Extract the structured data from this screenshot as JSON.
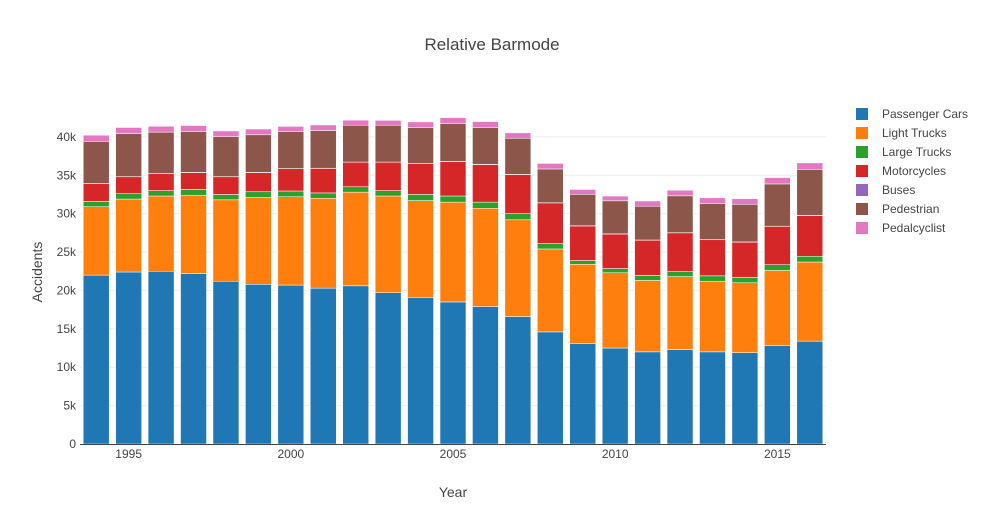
{
  "chart_data": {
    "type": "bar",
    "barmode": "relative",
    "title": "Relative Barmode",
    "xlabel": "Year",
    "ylabel": "Accidents",
    "x": [
      1994,
      1995,
      1996,
      1997,
      1998,
      1999,
      2000,
      2001,
      2002,
      2003,
      2004,
      2005,
      2006,
      2007,
      2008,
      2009,
      2010,
      2011,
      2012,
      2013,
      2014,
      2015,
      2016
    ],
    "xlim": [
      1993.5,
      2016.5
    ],
    "ylim": [
      0,
      43500
    ],
    "x_ticks": [
      1995,
      2000,
      2005,
      2010,
      2015
    ],
    "y_ticks": [
      0,
      5000,
      10000,
      15000,
      20000,
      25000,
      30000,
      35000,
      40000
    ],
    "y_tick_labels": [
      "0",
      "5k",
      "10k",
      "15k",
      "20k",
      "25k",
      "30k",
      "35k",
      "40k"
    ],
    "grid": true,
    "legend_position": "right",
    "series": [
      {
        "name": "Passenger Cars",
        "color": "#1f77b4",
        "values": [
          22000,
          22400,
          22500,
          22200,
          21200,
          20800,
          20700,
          20300,
          20600,
          19700,
          19100,
          18500,
          17900,
          16600,
          14600,
          13100,
          12500,
          12000,
          12300,
          12000,
          11900,
          12800,
          13400
        ]
      },
      {
        "name": "Light Trucks",
        "color": "#ff7f0e",
        "values": [
          8900,
          9500,
          9800,
          10200,
          10600,
          11300,
          11500,
          11700,
          12200,
          12600,
          12600,
          13000,
          12800,
          12600,
          10800,
          10300,
          9800,
          9300,
          9500,
          9200,
          9100,
          9800,
          10300
        ]
      },
      {
        "name": "Large Trucks",
        "color": "#2ca02c",
        "values": [
          700,
          700,
          700,
          750,
          700,
          750,
          750,
          700,
          700,
          700,
          800,
          800,
          800,
          800,
          700,
          500,
          550,
          650,
          700,
          700,
          700,
          750,
          750
        ]
      },
      {
        "name": "Motorcycles",
        "color": "#d62728",
        "values": [
          2300,
          2200,
          2200,
          2200,
          2300,
          2500,
          2900,
          3200,
          3200,
          3700,
          4000,
          4500,
          4900,
          5100,
          5300,
          4500,
          4500,
          4600,
          5000,
          4700,
          4600,
          5000,
          5300
        ]
      },
      {
        "name": "Buses",
        "color": "#9467bd",
        "values": [
          20,
          20,
          20,
          20,
          20,
          20,
          20,
          20,
          20,
          20,
          20,
          20,
          20,
          20,
          20,
          20,
          20,
          20,
          20,
          20,
          20,
          20,
          20
        ]
      },
      {
        "name": "Pedestrian",
        "color": "#8c564b",
        "values": [
          5500,
          5600,
          5400,
          5300,
          5200,
          4900,
          4800,
          4900,
          4800,
          4800,
          4700,
          4900,
          4800,
          4700,
          4400,
          4100,
          4300,
          4400,
          4800,
          4700,
          4900,
          5500,
          6000
        ]
      },
      {
        "name": "Pedalcyclist",
        "color": "#e377c2",
        "values": [
          800,
          800,
          760,
          810,
          750,
          750,
          690,
          730,
          660,
          630,
          730,
          780,
          770,
          700,
          720,
          630,
          620,
          680,
          730,
          740,
          730,
          820,
          840
        ]
      }
    ]
  }
}
